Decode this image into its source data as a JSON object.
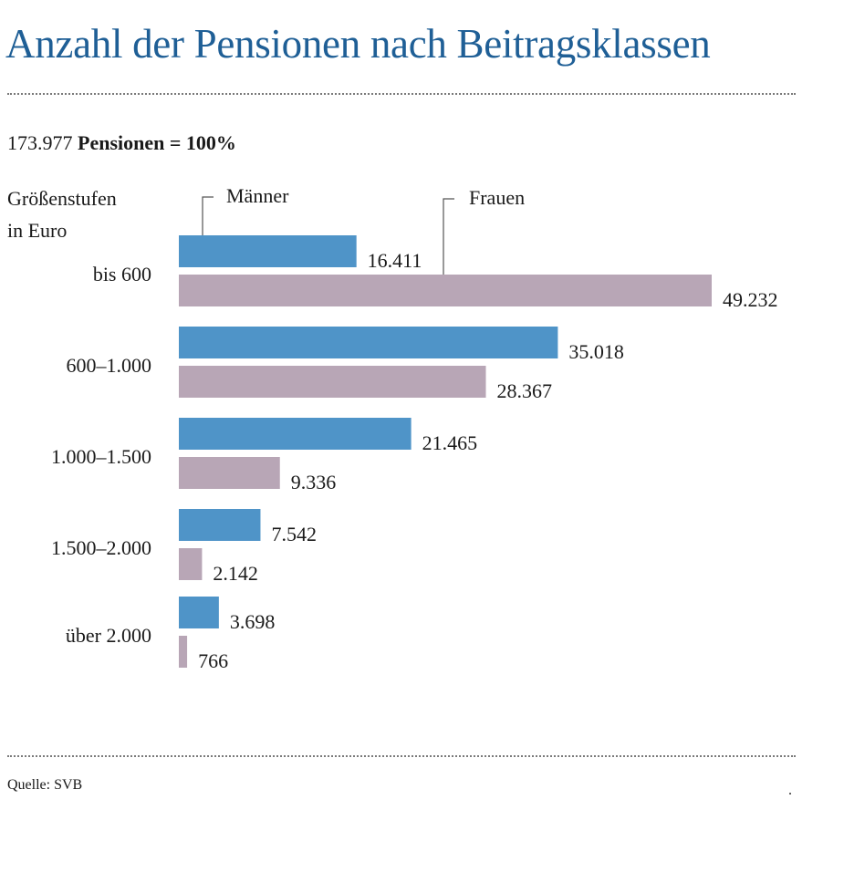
{
  "title": "Anzahl der Pensionen nach Beitragsklassen",
  "total": {
    "number": "173.977",
    "label": "Pensionen = 100%"
  },
  "axis_title": [
    "Größenstufen",
    "in Euro"
  ],
  "source": "Quelle: SVB",
  "end_mark": ".",
  "colors": {
    "title": "#1f5f96",
    "maenner": "#4f94c8",
    "frauen": "#b8a6b6"
  },
  "chart_data": {
    "type": "bar",
    "orientation": "horizontal",
    "categories": [
      "bis 600",
      "600–1.000",
      "1.000–1.500",
      "1.500–2.000",
      "über 2.000"
    ],
    "series": [
      {
        "name": "Männer",
        "values": [
          16411,
          35018,
          21465,
          7542,
          3698
        ],
        "labels": [
          "16.411",
          "35.018",
          "21.465",
          "7.542",
          "3.698"
        ]
      },
      {
        "name": "Frauen",
        "values": [
          49232,
          28367,
          9336,
          2142,
          766
        ],
        "labels": [
          "49.232",
          "28.367",
          "9.336",
          "2.142",
          "766"
        ]
      }
    ],
    "xlim": [
      0,
      49232
    ],
    "grid": false,
    "legend": "callout-top"
  }
}
